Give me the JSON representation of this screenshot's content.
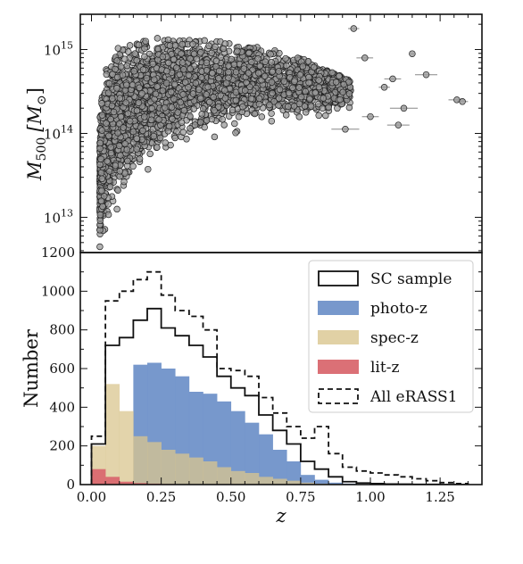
{
  "colors": {
    "scatter_fill": "#9a9a9a",
    "scatter_edge": "#222222",
    "photo": "#7092c9",
    "spec": "#d9c58f",
    "lit": "#d9686f",
    "line": "#111111"
  },
  "chart_data": [
    {
      "id": "mass-z",
      "type": "scatter",
      "xlabel": "",
      "ylabel_main": "M",
      "ylabel_sub": "500",
      "ylabel_unit_open": "[M",
      "ylabel_unit_sun": "⊙",
      "ylabel_unit_close": "]",
      "xlim": [
        -0.04,
        1.4
      ],
      "ylim_log10": [
        12.58,
        15.42
      ],
      "yscale": "log",
      "grid": false,
      "y_tick_labels": [
        {
          "base": "10",
          "exp": "13",
          "log10": 13
        },
        {
          "base": "10",
          "exp": "14",
          "log10": 14
        },
        {
          "base": "10",
          "exp": "15",
          "log10": 15
        }
      ],
      "envelope": {
        "z": [
          0.03,
          0.05,
          0.08,
          0.12,
          0.18,
          0.25,
          0.35,
          0.45,
          0.55,
          0.65,
          0.75,
          0.85,
          0.95
        ],
        "log10M_low": [
          12.55,
          12.75,
          12.95,
          13.2,
          13.45,
          13.6,
          13.75,
          13.85,
          13.95,
          14.0,
          14.05,
          14.1,
          14.2
        ],
        "log10M_high": [
          14.2,
          14.8,
          15.0,
          15.05,
          15.1,
          15.15,
          15.15,
          15.1,
          15.05,
          15.0,
          14.9,
          14.75,
          14.6
        ]
      },
      "outliers": [
        {
          "z": 0.98,
          "log10M": 14.9,
          "xerr": 0.03
        },
        {
          "z": 1.05,
          "log10M": 14.55,
          "xerr": 0.02
        },
        {
          "z": 1.08,
          "log10M": 14.65,
          "xerr": 0.03
        },
        {
          "z": 1.12,
          "log10M": 14.3,
          "xerr": 0.05
        },
        {
          "z": 1.15,
          "log10M": 14.95,
          "xerr": 0.01
        },
        {
          "z": 1.2,
          "log10M": 14.7,
          "xerr": 0.04
        },
        {
          "z": 1.31,
          "log10M": 14.4,
          "xerr": 0.03
        },
        {
          "z": 1.33,
          "log10M": 14.38,
          "xerr": 0.02
        },
        {
          "z": 1.1,
          "log10M": 14.1,
          "xerr": 0.04
        },
        {
          "z": 1.0,
          "log10M": 14.2,
          "xerr": 0.03
        },
        {
          "z": 0.91,
          "log10M": 14.05,
          "xerr": 0.05
        },
        {
          "z": 0.94,
          "log10M": 15.25,
          "xerr": 0.02
        }
      ]
    },
    {
      "id": "number-z",
      "type": "bar",
      "xlabel": "z",
      "ylabel": "Number",
      "xlim": [
        -0.04,
        1.4
      ],
      "ylim": [
        0,
        1200
      ],
      "grid": false,
      "legend_position": "top-right",
      "x_tick_labels": [
        "0.00",
        "0.25",
        "0.50",
        "0.75",
        "1.00",
        "1.25"
      ],
      "x_tick_values": [
        0,
        0.25,
        0.5,
        0.75,
        1.0,
        1.25
      ],
      "y_tick_labels": [
        "0",
        "200",
        "400",
        "600",
        "800",
        "1000",
        "1200"
      ],
      "y_tick_values": [
        0,
        200,
        400,
        600,
        800,
        1000,
        1200
      ],
      "bin_edges": [
        0.0,
        0.05,
        0.1,
        0.15,
        0.2,
        0.25,
        0.3,
        0.35,
        0.4,
        0.45,
        0.5,
        0.55,
        0.6,
        0.65,
        0.7,
        0.75,
        0.8,
        0.85,
        0.9,
        0.95,
        1.0,
        1.05,
        1.1,
        1.15,
        1.2,
        1.25,
        1.3,
        1.35
      ],
      "series": [
        {
          "key": "photo",
          "name": "photo-z",
          "style": "filled",
          "values": [
            0,
            0,
            0,
            620,
            630,
            600,
            560,
            480,
            470,
            430,
            380,
            320,
            260,
            180,
            120,
            50,
            25,
            10,
            5,
            2,
            1,
            0,
            0,
            0,
            0,
            0,
            0
          ]
        },
        {
          "key": "spec",
          "name": "spec-z",
          "style": "filled",
          "values": [
            200,
            520,
            380,
            250,
            220,
            180,
            160,
            140,
            120,
            90,
            70,
            60,
            40,
            30,
            20,
            10,
            5,
            3,
            2,
            1,
            0,
            0,
            0,
            0,
            0,
            0,
            0
          ]
        },
        {
          "key": "lit",
          "name": "lit-z",
          "style": "filled",
          "values": [
            80,
            40,
            15,
            8,
            5,
            3,
            2,
            1,
            0,
            0,
            0,
            0,
            0,
            0,
            0,
            0,
            0,
            0,
            0,
            0,
            0,
            0,
            0,
            0,
            0,
            0,
            0
          ]
        },
        {
          "key": "sc",
          "name": "SC sample",
          "style": "step",
          "values": [
            210,
            720,
            760,
            850,
            910,
            810,
            770,
            720,
            660,
            560,
            500,
            460,
            360,
            280,
            210,
            120,
            80,
            40,
            15,
            8,
            5,
            3,
            2,
            1,
            1,
            0,
            0
          ]
        },
        {
          "key": "all",
          "name": "All eRASS1",
          "style": "step-dashed",
          "values": [
            250,
            950,
            1000,
            1060,
            1100,
            980,
            900,
            870,
            800,
            600,
            590,
            560,
            450,
            370,
            300,
            240,
            300,
            160,
            90,
            70,
            60,
            50,
            40,
            30,
            20,
            10,
            5
          ]
        }
      ],
      "legend_order": [
        "sc",
        "photo",
        "spec",
        "lit",
        "all"
      ]
    }
  ]
}
